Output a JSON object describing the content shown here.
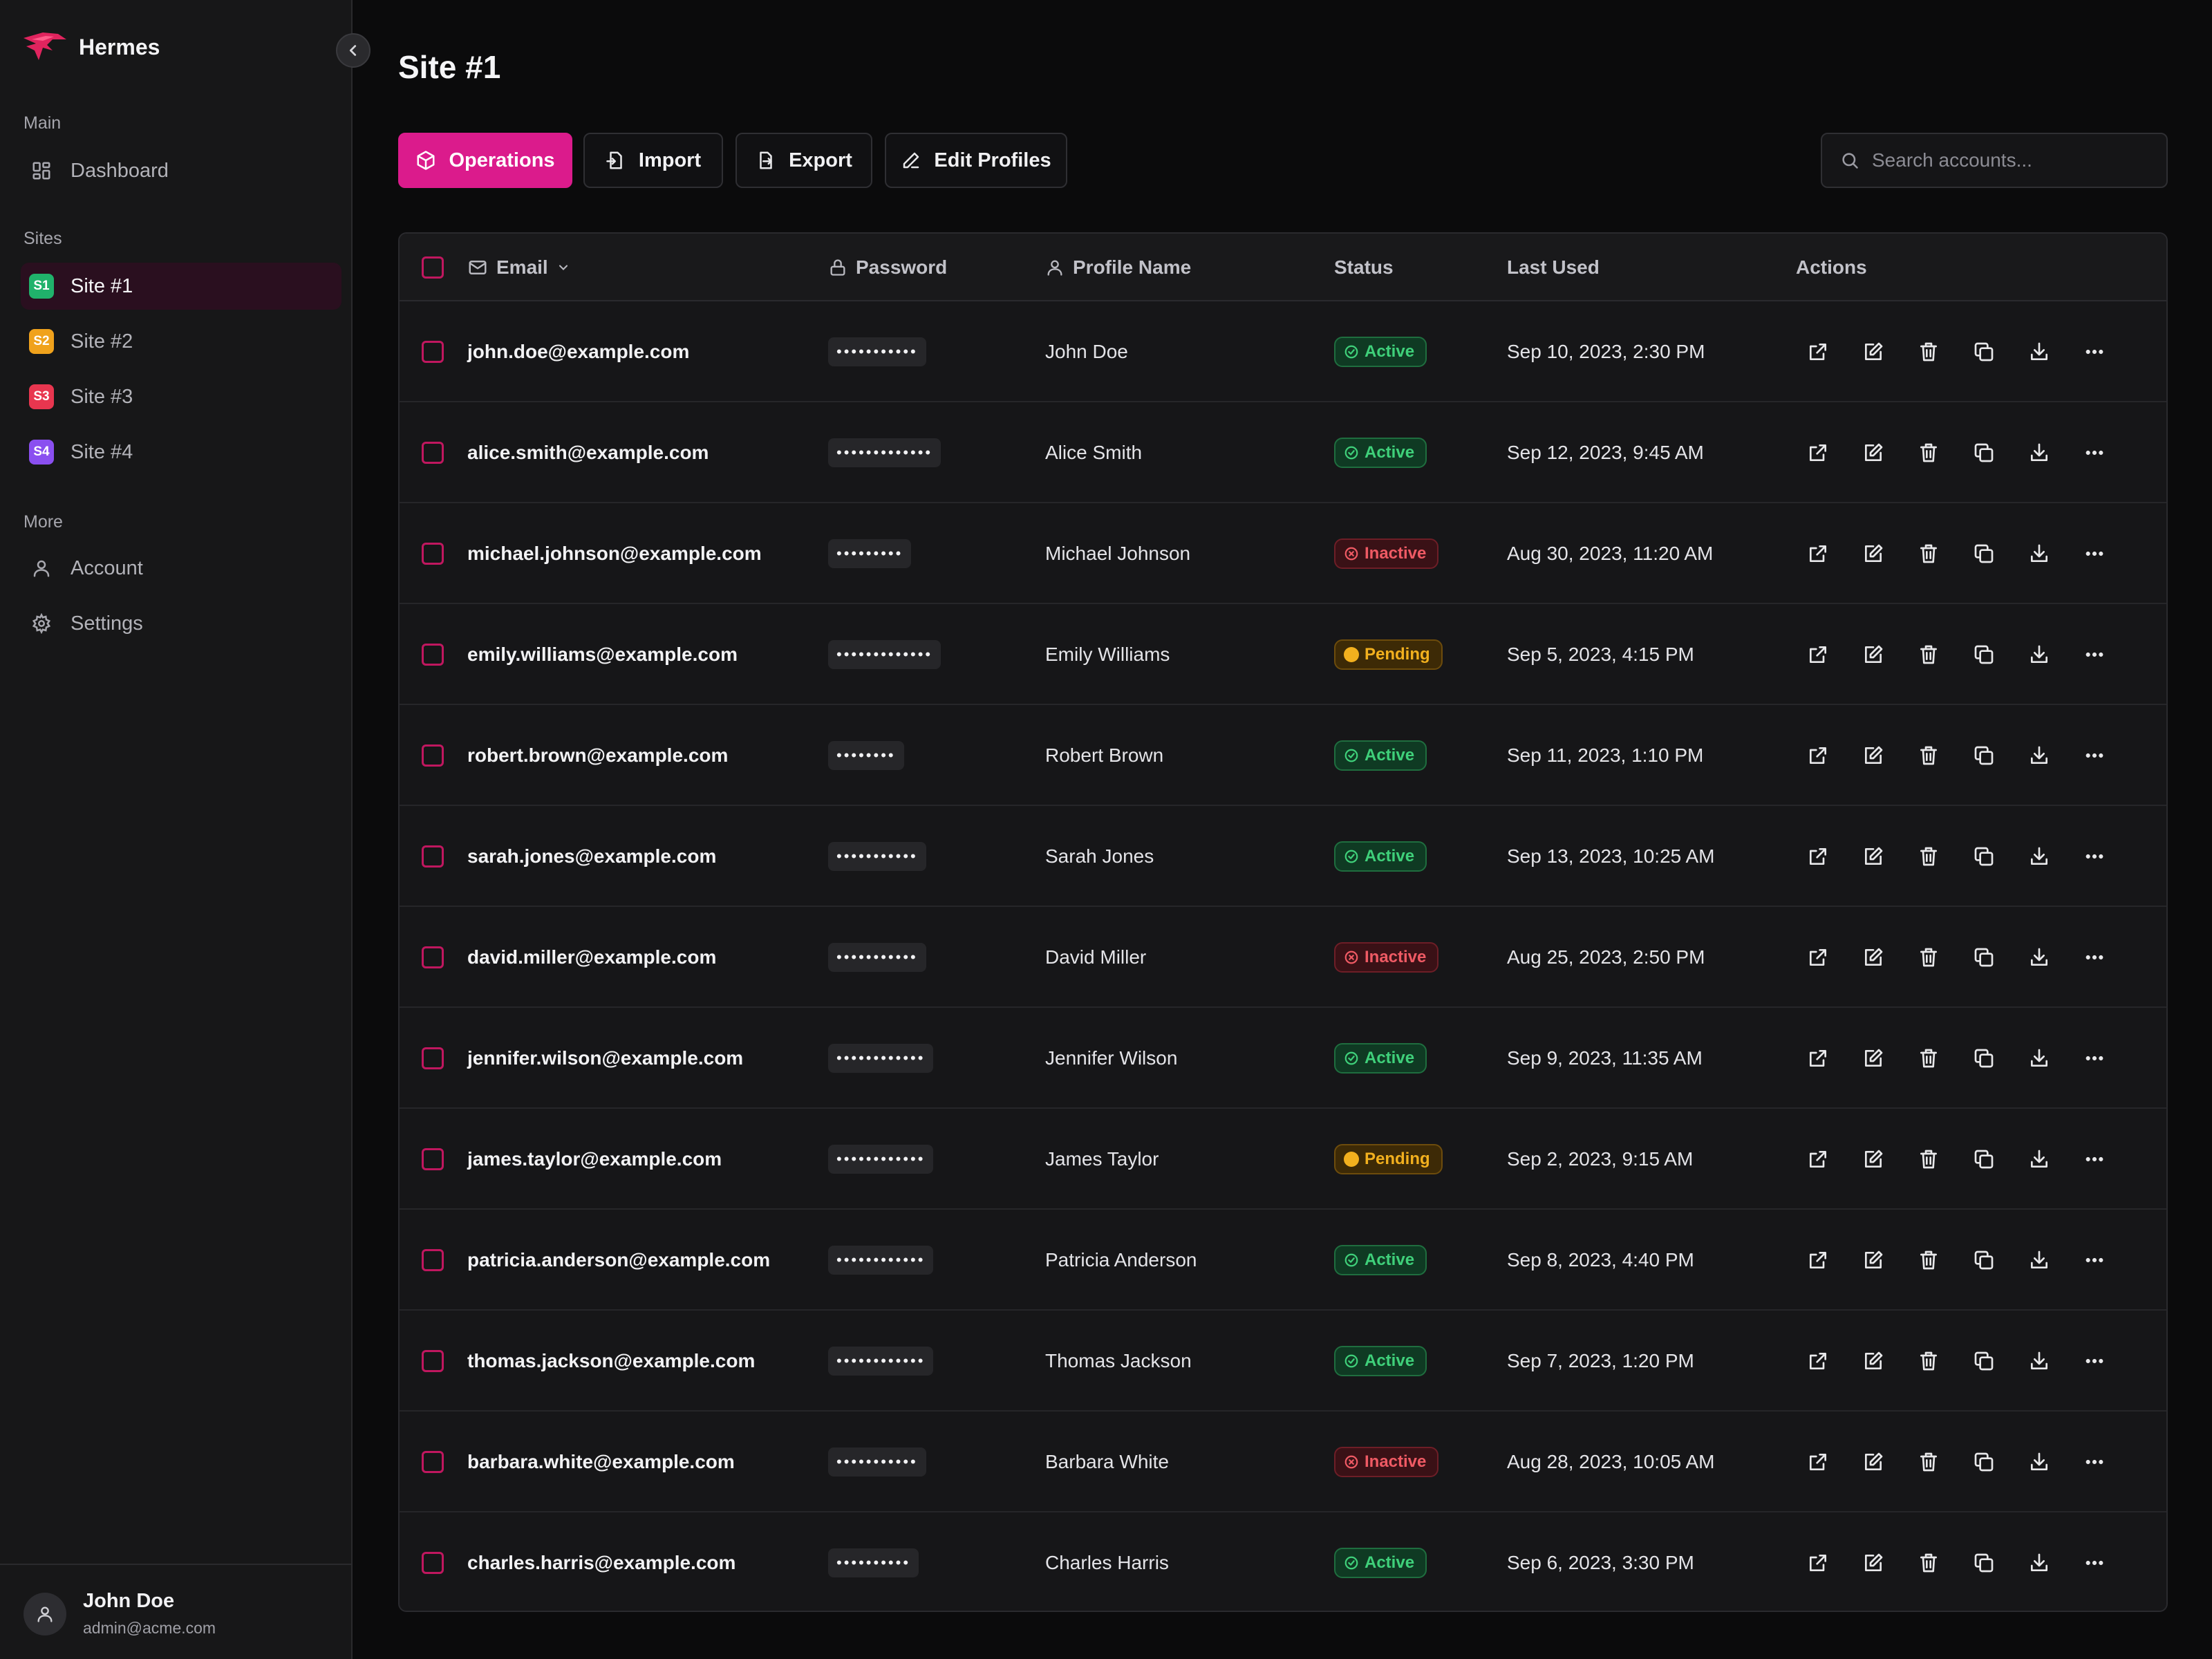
{
  "app": {
    "name": "Hermes"
  },
  "sidebar": {
    "sections": {
      "main": "Main",
      "sites": "Sites",
      "more": "More"
    },
    "main_items": [
      {
        "label": "Dashboard",
        "icon": "dashboard-icon"
      }
    ],
    "sites": [
      {
        "badge": "S1",
        "label": "Site #1",
        "color": "#20b26b",
        "active": true
      },
      {
        "badge": "S2",
        "label": "Site #2",
        "color": "#f0a21c",
        "active": false
      },
      {
        "badge": "S3",
        "label": "Site #3",
        "color": "#e8364f",
        "active": false
      },
      {
        "badge": "S4",
        "label": "Site #4",
        "color": "#8a4ff0",
        "active": false
      }
    ],
    "more_items": [
      {
        "label": "Account",
        "icon": "user-icon"
      },
      {
        "label": "Settings",
        "icon": "gear-icon"
      }
    ],
    "user": {
      "name": "John Doe",
      "email": "admin@acme.com"
    }
  },
  "page": {
    "title": "Site #1"
  },
  "toolbar": {
    "operations": "Operations",
    "import": "Import",
    "export": "Export",
    "edit_profiles": "Edit Profiles",
    "search_placeholder": "Search accounts..."
  },
  "table": {
    "headers": {
      "email": "Email",
      "password": "Password",
      "profile": "Profile Name",
      "status": "Status",
      "last_used": "Last Used",
      "actions": "Actions"
    },
    "rows": [
      {
        "email": "john.doe@example.com",
        "password": "•••••••••••",
        "profile": "John Doe",
        "status": "Active",
        "last_used": "Sep 10, 2023, 2:30 PM"
      },
      {
        "email": "alice.smith@example.com",
        "password": "•••••••••••••",
        "profile": "Alice Smith",
        "status": "Active",
        "last_used": "Sep 12, 2023, 9:45 AM"
      },
      {
        "email": "michael.johnson@example.com",
        "password": "•••••••••",
        "profile": "Michael Johnson",
        "status": "Inactive",
        "last_used": "Aug 30, 2023, 11:20 AM"
      },
      {
        "email": "emily.williams@example.com",
        "password": "•••••••••••••",
        "profile": "Emily Williams",
        "status": "Pending",
        "last_used": "Sep 5, 2023, 4:15 PM"
      },
      {
        "email": "robert.brown@example.com",
        "password": "••••••••",
        "profile": "Robert Brown",
        "status": "Active",
        "last_used": "Sep 11, 2023, 1:10 PM"
      },
      {
        "email": "sarah.jones@example.com",
        "password": "•••••••••••",
        "profile": "Sarah Jones",
        "status": "Active",
        "last_used": "Sep 13, 2023, 10:25 AM"
      },
      {
        "email": "david.miller@example.com",
        "password": "•••••••••••",
        "profile": "David Miller",
        "status": "Inactive",
        "last_used": "Aug 25, 2023, 2:50 PM"
      },
      {
        "email": "jennifer.wilson@example.com",
        "password": "••••••••••••",
        "profile": "Jennifer Wilson",
        "status": "Active",
        "last_used": "Sep 9, 2023, 11:35 AM"
      },
      {
        "email": "james.taylor@example.com",
        "password": "••••••••••••",
        "profile": "James Taylor",
        "status": "Pending",
        "last_used": "Sep 2, 2023, 9:15 AM"
      },
      {
        "email": "patricia.anderson@example.com",
        "password": "••••••••••••",
        "profile": "Patricia Anderson",
        "status": "Active",
        "last_used": "Sep 8, 2023, 4:40 PM"
      },
      {
        "email": "thomas.jackson@example.com",
        "password": "••••••••••••",
        "profile": "Thomas Jackson",
        "status": "Active",
        "last_used": "Sep 7, 2023, 1:20 PM"
      },
      {
        "email": "barbara.white@example.com",
        "password": "•••••••••••",
        "profile": "Barbara White",
        "status": "Inactive",
        "last_used": "Aug 28, 2023, 10:05 AM"
      },
      {
        "email": "charles.harris@example.com",
        "password": "••••••••••",
        "profile": "Charles Harris",
        "status": "Active",
        "last_used": "Sep 6, 2023, 3:30 PM"
      }
    ],
    "row_actions": [
      "open-external-icon",
      "edit-icon",
      "trash-icon",
      "copy-icon",
      "download-icon",
      "more-icon"
    ]
  },
  "colors": {
    "accent": "#db1b8c",
    "active": "#3fd07a",
    "inactive": "#ef5a64",
    "pending": "#f2b01e"
  }
}
